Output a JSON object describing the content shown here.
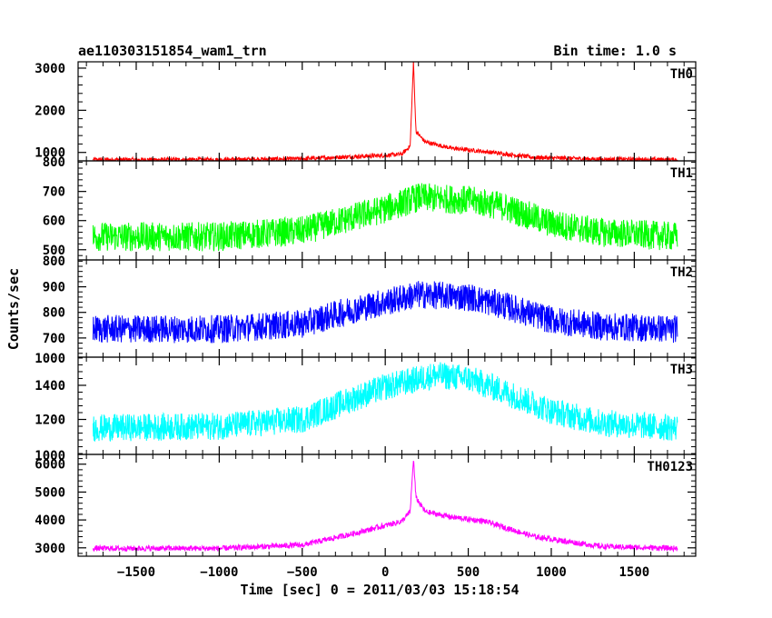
{
  "chart_data": {
    "type": "line",
    "header": {
      "left": "ae110303151854_wam1_trn",
      "right": "Bin time: 1.0 s"
    },
    "xlabel": "Time [sec] 0 = 2011/03/03 15:18:54",
    "ylabel": "Counts/sec",
    "xlim": [
      -1850,
      1870
    ],
    "x_range": [
      -1760,
      1760
    ],
    "x_ticks": [
      -1500,
      -1000,
      -500,
      0,
      500,
      1000,
      1500
    ],
    "x_tick_labels": [
      "−1500",
      "−1000",
      "−500",
      "0",
      "500",
      "1000",
      "1500"
    ],
    "grid": false,
    "panels": [
      {
        "name": "TH0",
        "color": "#ff0000",
        "ylim": [
          800,
          3150
        ],
        "y_ticks": [
          1000,
          2000,
          3000
        ],
        "y_tick_labels": [
          "1000",
          "2000",
          "3000"
        ],
        "y_bottom_label": "800",
        "profile": [
          [
            -1760,
            830
          ],
          [
            -1000,
            830
          ],
          [
            -500,
            850
          ],
          [
            -200,
            900
          ],
          [
            0,
            930
          ],
          [
            100,
            960
          ],
          [
            150,
            1150
          ],
          [
            170,
            3150
          ],
          [
            185,
            1500
          ],
          [
            240,
            1250
          ],
          [
            400,
            1100
          ],
          [
            600,
            1020
          ],
          [
            900,
            880
          ],
          [
            1300,
            840
          ],
          [
            1760,
            830
          ]
        ],
        "noise": 50
      },
      {
        "name": "TH1",
        "color": "#00ff00",
        "ylim": [
          465,
          805
        ],
        "y_ticks": [
          500,
          600,
          700
        ],
        "y_tick_labels": [
          "500",
          "600",
          "700"
        ],
        "y_bottom_label": "800",
        "profile": [
          [
            -1760,
            545
          ],
          [
            -1000,
            545
          ],
          [
            -500,
            565
          ],
          [
            -200,
            610
          ],
          [
            0,
            640
          ],
          [
            200,
            680
          ],
          [
            500,
            670
          ],
          [
            700,
            650
          ],
          [
            1000,
            590
          ],
          [
            1300,
            560
          ],
          [
            1760,
            545
          ]
        ],
        "noise": 50
      },
      {
        "name": "TH2",
        "color": "#0000ff",
        "ylim": [
          625,
          1005
        ],
        "y_ticks": [
          700,
          800,
          900
        ],
        "y_tick_labels": [
          "700",
          "800",
          "900"
        ],
        "y_bottom_label": "1000",
        "profile": [
          [
            -1760,
            735
          ],
          [
            -1000,
            735
          ],
          [
            -500,
            755
          ],
          [
            -200,
            810
          ],
          [
            0,
            840
          ],
          [
            200,
            870
          ],
          [
            500,
            860
          ],
          [
            700,
            830
          ],
          [
            1000,
            770
          ],
          [
            1300,
            745
          ],
          [
            1760,
            735
          ]
        ],
        "noise": 55
      },
      {
        "name": "TH3",
        "color": "#00ffff",
        "ylim": [
          995,
          1565
        ],
        "y_ticks": [
          1200,
          1400
        ],
        "y_tick_labels": [
          "1200",
          "1400"
        ],
        "y_bottom_label": "1000",
        "profile": [
          [
            -1760,
            1150
          ],
          [
            -1000,
            1160
          ],
          [
            -500,
            1200
          ],
          [
            -200,
            1320
          ],
          [
            0,
            1390
          ],
          [
            300,
            1460
          ],
          [
            500,
            1440
          ],
          [
            700,
            1370
          ],
          [
            1000,
            1250
          ],
          [
            1300,
            1180
          ],
          [
            1760,
            1150
          ]
        ],
        "noise": 80
      },
      {
        "name": "TH0123",
        "color": "#ff00ff",
        "ylim": [
          2700,
          6350
        ],
        "y_ticks": [
          3000,
          4000,
          5000,
          6000
        ],
        "y_tick_labels": [
          "3000",
          "4000",
          "5000",
          "6000"
        ],
        "y_bottom_label": "",
        "profile": [
          [
            -1760,
            2980
          ],
          [
            -1000,
            2980
          ],
          [
            -500,
            3100
          ],
          [
            -200,
            3500
          ],
          [
            0,
            3800
          ],
          [
            100,
            3950
          ],
          [
            150,
            4300
          ],
          [
            170,
            6200
          ],
          [
            185,
            4800
          ],
          [
            240,
            4300
          ],
          [
            400,
            4100
          ],
          [
            600,
            3950
          ],
          [
            900,
            3400
          ],
          [
            1300,
            3050
          ],
          [
            1760,
            2980
          ]
        ],
        "noise": 100
      }
    ]
  }
}
